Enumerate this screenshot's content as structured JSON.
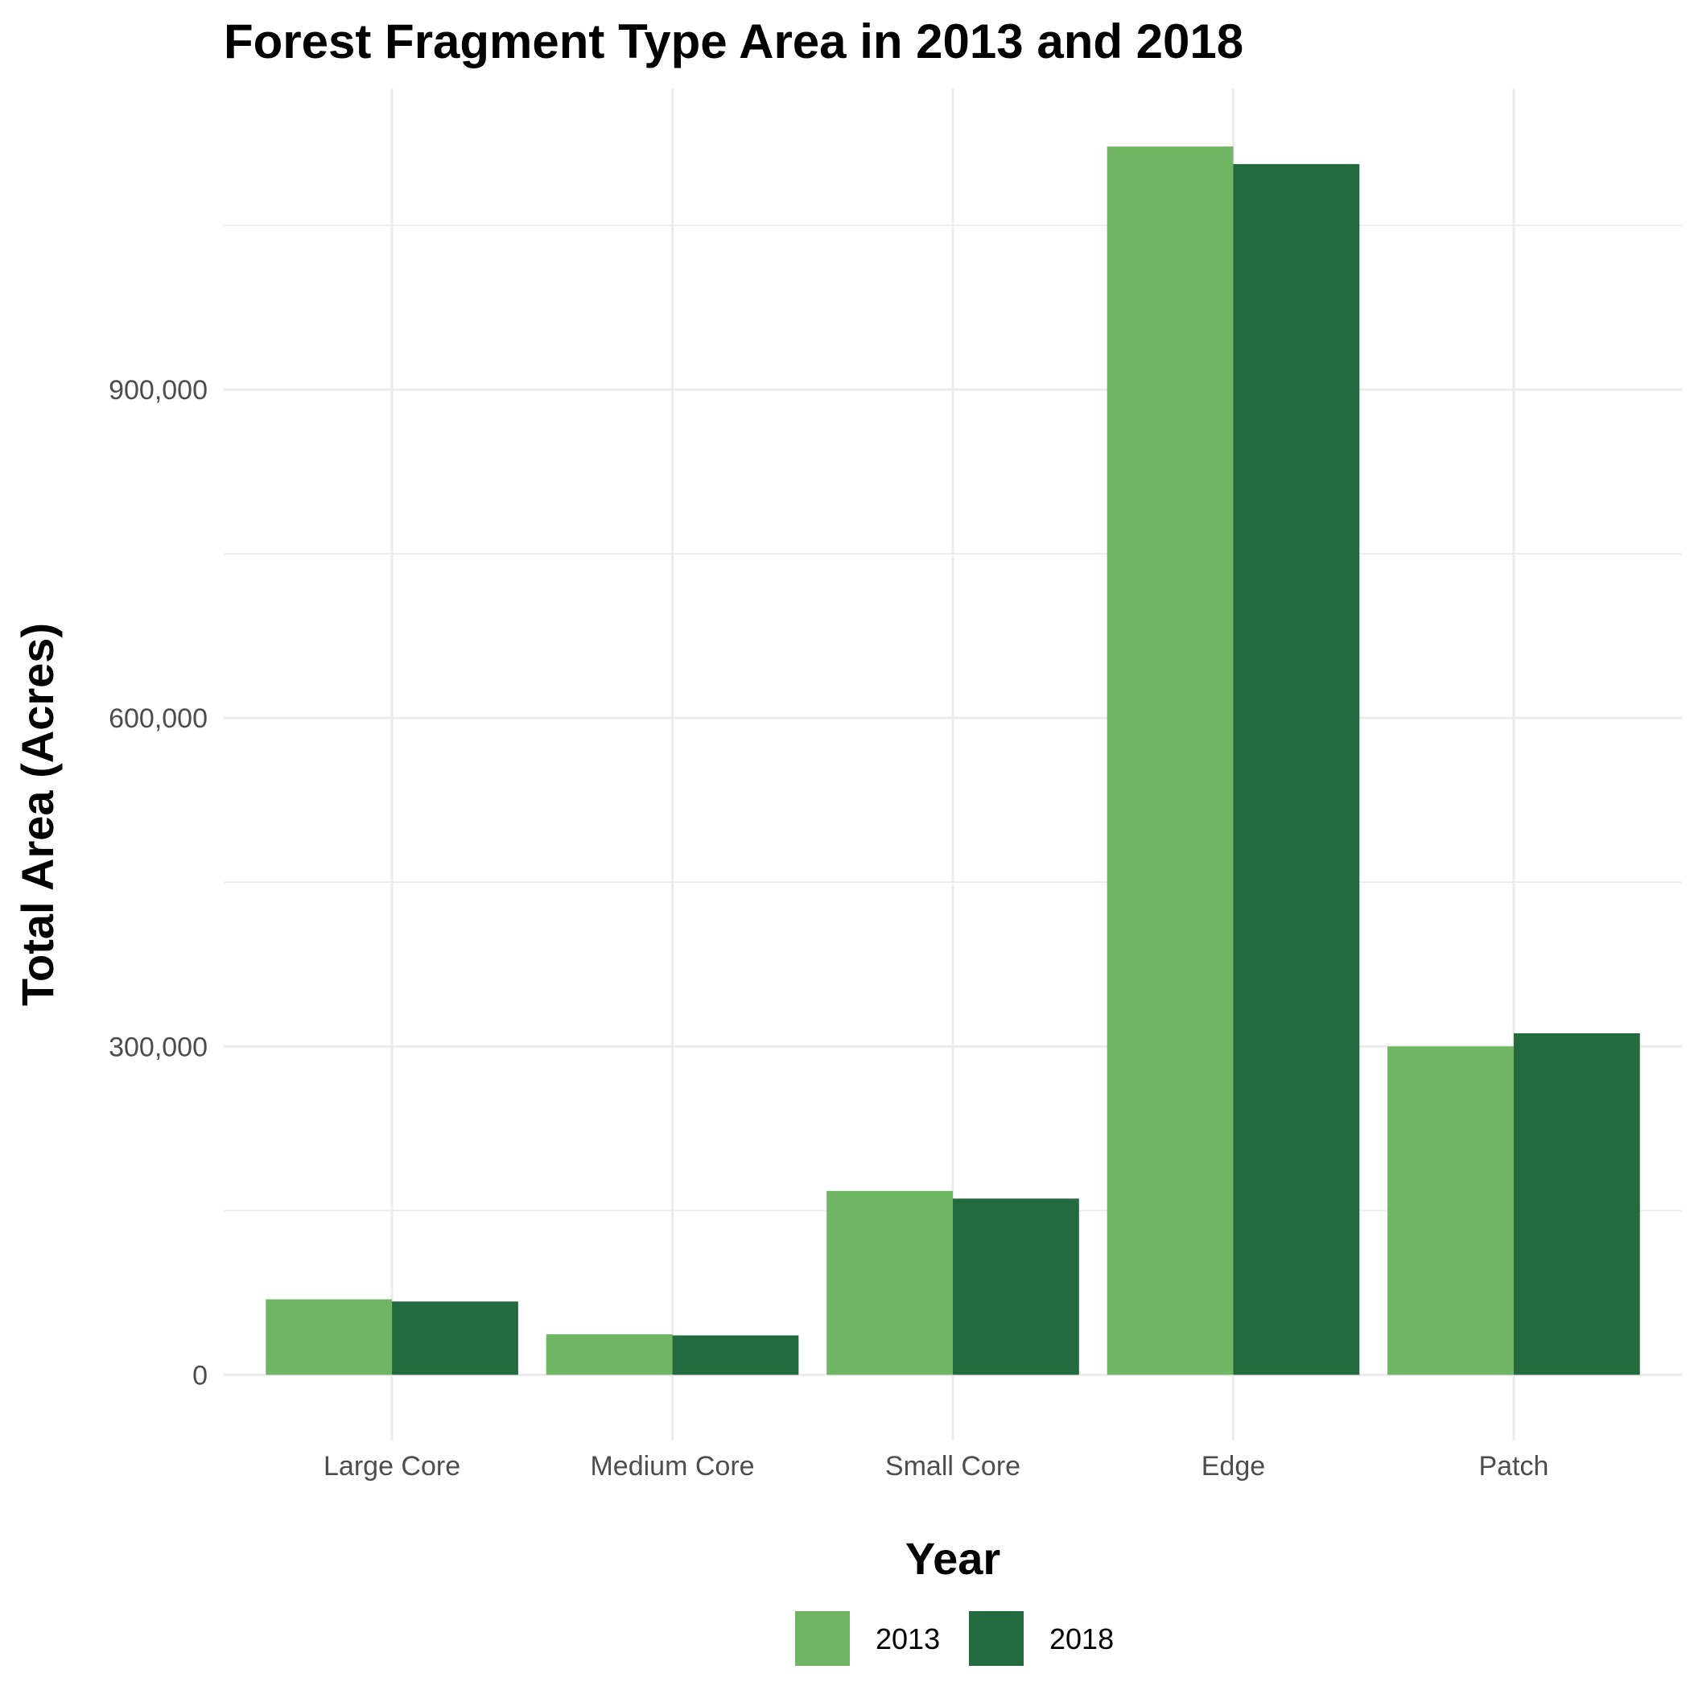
{
  "chart_data": {
    "type": "bar",
    "title": "Forest Fragment Type Area in 2013 and 2018",
    "xlabel": "Year",
    "ylabel": "Total Area (Acres)",
    "categories": [
      "Large Core",
      "Medium Core",
      "Small Core",
      "Edge",
      "Patch"
    ],
    "series": [
      {
        "name": "2013",
        "color": "#6fb563",
        "values": [
          69000,
          37000,
          168000,
          1122000,
          300000
        ]
      },
      {
        "name": "2018",
        "color": "#236a3e",
        "values": [
          67000,
          36000,
          161000,
          1106000,
          312000
        ]
      }
    ],
    "ylim": [
      -60000,
      1175000
    ],
    "yticks": [
      0,
      300000,
      600000,
      900000
    ],
    "ytick_labels": [
      "0",
      "300,000",
      "600,000",
      "900,000"
    ],
    "yminor": [
      150000,
      450000,
      750000,
      1050000
    ],
    "grid": true,
    "legend_position": "bottom"
  }
}
